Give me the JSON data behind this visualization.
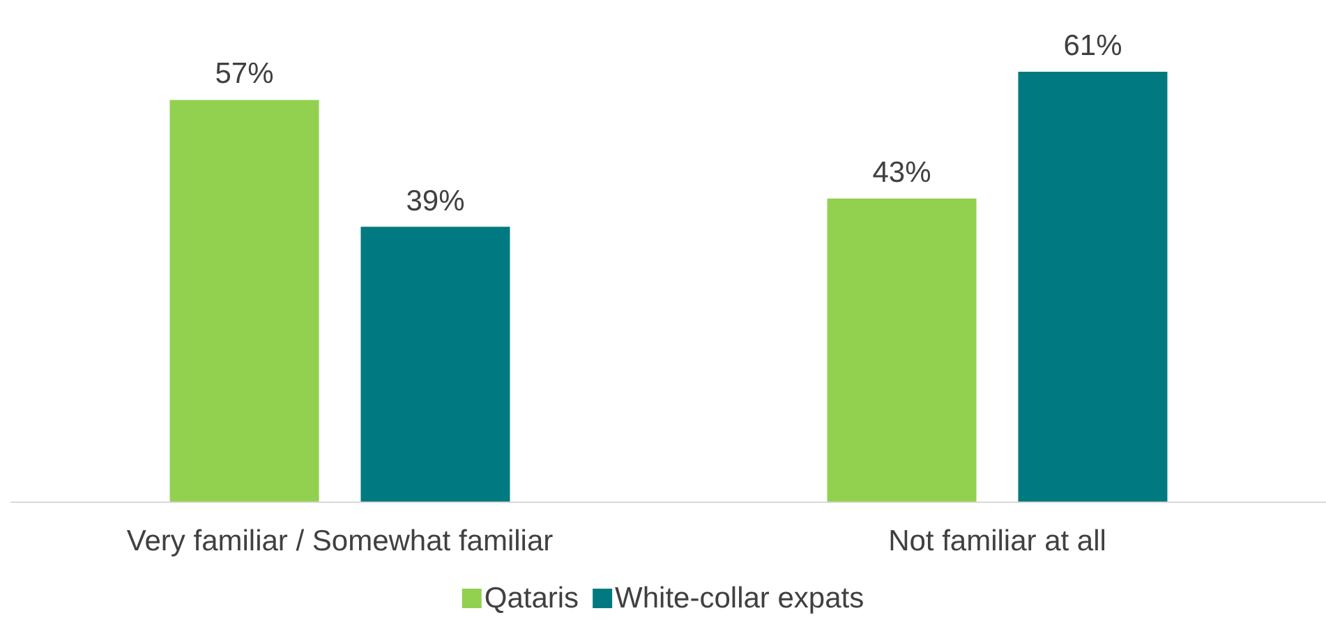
{
  "chart_data": {
    "type": "bar",
    "categories": [
      "Very familiar / Somewhat familiar",
      "Not familiar at all"
    ],
    "series": [
      {
        "name": "Qataris",
        "color": "#92d050",
        "values": [
          57,
          43
        ],
        "value_labels": [
          "57%",
          "43%"
        ]
      },
      {
        "name": "White-collar expats",
        "color": "#007a80",
        "values": [
          39,
          61
        ],
        "value_labels": [
          "39%",
          "61%"
        ]
      }
    ],
    "legend": "bottom"
  }
}
